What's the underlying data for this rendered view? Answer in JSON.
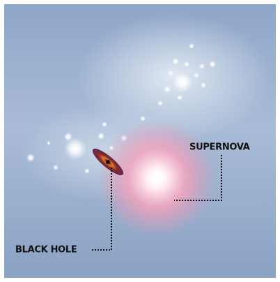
{
  "annotations": [
    {
      "label": "SUPERNOVA"
    },
    {
      "label": "BLACK HOLE"
    }
  ]
}
